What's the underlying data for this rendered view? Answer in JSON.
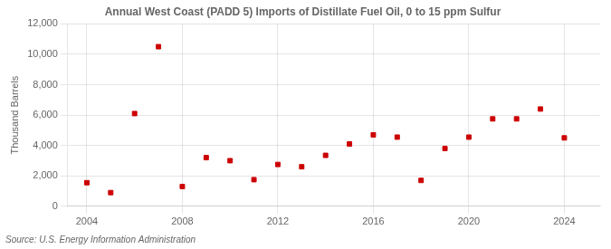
{
  "chart_data": {
    "type": "scatter",
    "title": "Annual West Coast (PADD 5) Imports of Distillate Fuel Oil, 0 to 15 ppm Sulfur",
    "ylabel": "Thousand Barrels",
    "annotation": "Source: U.S. Energy Information Administration",
    "x": [
      2004,
      2005,
      2006,
      2007,
      2008,
      2009,
      2010,
      2011,
      2012,
      2013,
      2014,
      2015,
      2016,
      2017,
      2018,
      2019,
      2020,
      2021,
      2022,
      2023,
      2024
    ],
    "values": [
      1550,
      900,
      6100,
      10500,
      1300,
      3200,
      3000,
      1750,
      2750,
      2600,
      3350,
      4100,
      4700,
      4550,
      1700,
      3800,
      4550,
      5750,
      5750,
      6400,
      4500
    ],
    "color": "#cc0000",
    "marker": "square",
    "xlim": [
      2003.2,
      2025.5
    ],
    "xticks": [
      2004,
      2008,
      2012,
      2016,
      2020,
      2024
    ],
    "ylim": [
      0,
      12000
    ],
    "yticks": [
      0,
      {
        "value": 2000,
        "label": "2,000"
      },
      {
        "value": 4000,
        "label": "4,000"
      },
      {
        "value": 6000,
        "label": "6,000"
      },
      {
        "value": 8000,
        "label": "8,000"
      },
      {
        "value": 10000,
        "label": "10,000"
      },
      {
        "value": 12000,
        "label": "12,000"
      }
    ],
    "grid": true
  }
}
